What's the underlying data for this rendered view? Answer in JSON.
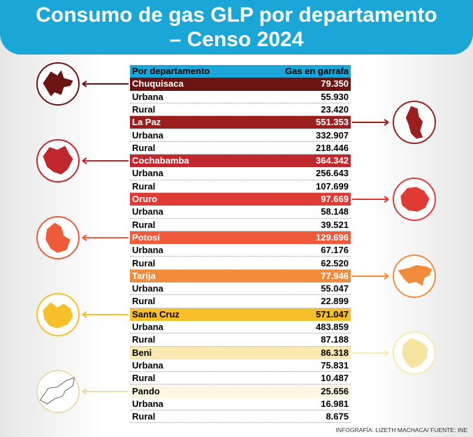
{
  "title_line1": "Consumo de gas GLP por departamento",
  "title_line2": "– Censo 2024",
  "footer": "INFOGRAFÍA: LIZETH MACHACA/ FUENTE: INE",
  "chart_data": {
    "type": "table",
    "columns": [
      "Por departamento",
      "Gas en garrafa"
    ],
    "departments": [
      {
        "name": "Chuquisaca",
        "total": "79.350",
        "urbana": "55.930",
        "rural": "23.420",
        "color": "#6b1414",
        "text_color": "#ffffff",
        "side": "left"
      },
      {
        "name": "La Paz",
        "total": "551.353",
        "urbana": "332.907",
        "rural": "218.446",
        "color": "#9c1f1f",
        "text_color": "#ffffff",
        "side": "right"
      },
      {
        "name": "Cochabamba",
        "total": "364.342",
        "urbana": "256.643",
        "rural": "107.699",
        "color": "#c1282d",
        "text_color": "#ffffff",
        "side": "left"
      },
      {
        "name": "Oruro",
        "total": "97.669",
        "urbana": "58.148",
        "rural": "39.521",
        "color": "#e03a35",
        "text_color": "#ffffff",
        "side": "right"
      },
      {
        "name": "Potosí",
        "total": "129.696",
        "urbana": "67.176",
        "rural": "62.520",
        "color": "#ef5a3a",
        "text_color": "#ffffff",
        "side": "left"
      },
      {
        "name": "Tarija",
        "total": "77.946",
        "urbana": "55.047",
        "rural": "22.899",
        "color": "#f28c3a",
        "text_color": "#ffffff",
        "side": "right"
      },
      {
        "name": "Santa Cruz",
        "total": "571.047",
        "urbana": "483.859",
        "rural": "87.188",
        "color": "#f7bf2a",
        "text_color": "#000000",
        "side": "left"
      },
      {
        "name": "Beni",
        "total": "86.318",
        "urbana": "75.831",
        "rural": "10.487",
        "color": "#f9e9b0",
        "text_color": "#000000",
        "side": "right"
      },
      {
        "name": "Pando",
        "total": "25.656",
        "urbana": "16.981",
        "rural": "8.675",
        "color": "#fdf6e3",
        "text_color": "#000000",
        "side": "left"
      }
    ],
    "sub_labels": [
      "Urbana",
      "Rural"
    ],
    "map_colors": [
      "#6b1414",
      "#9c1f1f",
      "#c1282d",
      "#e03a35",
      "#ef5a3a",
      "#f28c3a",
      "#f7bf2a",
      "#f5e3a0",
      "#ffffff"
    ]
  }
}
